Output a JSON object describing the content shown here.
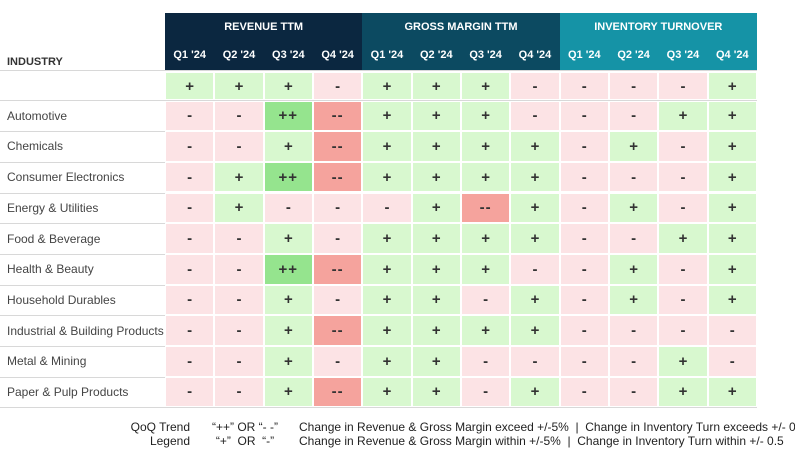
{
  "header": {
    "first_column": "INDUSTRY",
    "groups": [
      {
        "title": "REVENUE TTM",
        "quarters": [
          "Q1 '24",
          "Q2 '24",
          "Q3 '24",
          "Q4 '24"
        ]
      },
      {
        "title": "GROSS MARGIN TTM",
        "quarters": [
          "Q1 '24",
          "Q2 '24",
          "Q3 '24",
          "Q4 '24"
        ]
      },
      {
        "title": "INVENTORY TURNOVER",
        "quarters": [
          "Q1 '24",
          "Q2 '24",
          "Q3 '24",
          "Q4 '24"
        ]
      }
    ]
  },
  "table": {
    "rows": [
      {
        "industry": null,
        "values": [
          "+",
          "+",
          "+",
          "-",
          "+",
          "+",
          "+",
          "-",
          "-",
          "-",
          "-",
          "+"
        ]
      },
      {
        "industry": "Automotive",
        "values": [
          "-",
          "-",
          "++",
          "--",
          "+",
          "+",
          "+",
          "-",
          "-",
          "-",
          "+",
          "+"
        ]
      },
      {
        "industry": "Chemicals",
        "values": [
          "-",
          "-",
          "+",
          "--",
          "+",
          "+",
          "+",
          "+",
          "-",
          "+",
          "-",
          "+"
        ]
      },
      {
        "industry": "Consumer Electronics",
        "values": [
          "-",
          "+",
          "++",
          "--",
          "+",
          "+",
          "+",
          "+",
          "-",
          "-",
          "-",
          "+"
        ]
      },
      {
        "industry": "Energy & Utilities",
        "values": [
          "-",
          "+",
          "-",
          "-",
          "-",
          "+",
          "--",
          "+",
          "-",
          "+",
          "-",
          "+"
        ]
      },
      {
        "industry": "Food & Beverage",
        "values": [
          "-",
          "-",
          "+",
          "-",
          "+",
          "+",
          "+",
          "+",
          "-",
          "-",
          "+",
          "+"
        ]
      },
      {
        "industry": "Health & Beauty",
        "values": [
          "-",
          "-",
          "++",
          "--",
          "+",
          "+",
          "+",
          "-",
          "-",
          "+",
          "-",
          "+"
        ]
      },
      {
        "industry": "Household Durables",
        "values": [
          "-",
          "-",
          "+",
          "-",
          "+",
          "+",
          "-",
          "+",
          "-",
          "+",
          "-",
          "+"
        ]
      },
      {
        "industry": "Industrial & Building Products",
        "values": [
          "-",
          "-",
          "+",
          "--",
          "+",
          "+",
          "+",
          "+",
          "-",
          "-",
          "-",
          "-"
        ]
      },
      {
        "industry": "Metal & Mining",
        "values": [
          "-",
          "-",
          "+",
          "-",
          "+",
          "+",
          "-",
          "-",
          "-",
          "-",
          "+",
          "-"
        ]
      },
      {
        "industry": "Paper & Pulp Products",
        "values": [
          "-",
          "-",
          "+",
          "--",
          "+",
          "+",
          "-",
          "+",
          "-",
          "-",
          "+",
          "+"
        ]
      }
    ]
  },
  "legend": {
    "title": [
      "QoQ Trend",
      "Legend"
    ],
    "items": [
      {
        "symbol": "“++” OR “- -”",
        "description": "Change in Revenue & Gross Margin exceed +/-5%  |  Change in Inventory Turn exceeds +/- 0.5"
      },
      {
        "symbol": "“+”  OR  “-”",
        "description": "Change in Revenue & Gross Margin within +/-5%  |  Change in Inventory Turn within +/- 0.5"
      }
    ]
  }
}
